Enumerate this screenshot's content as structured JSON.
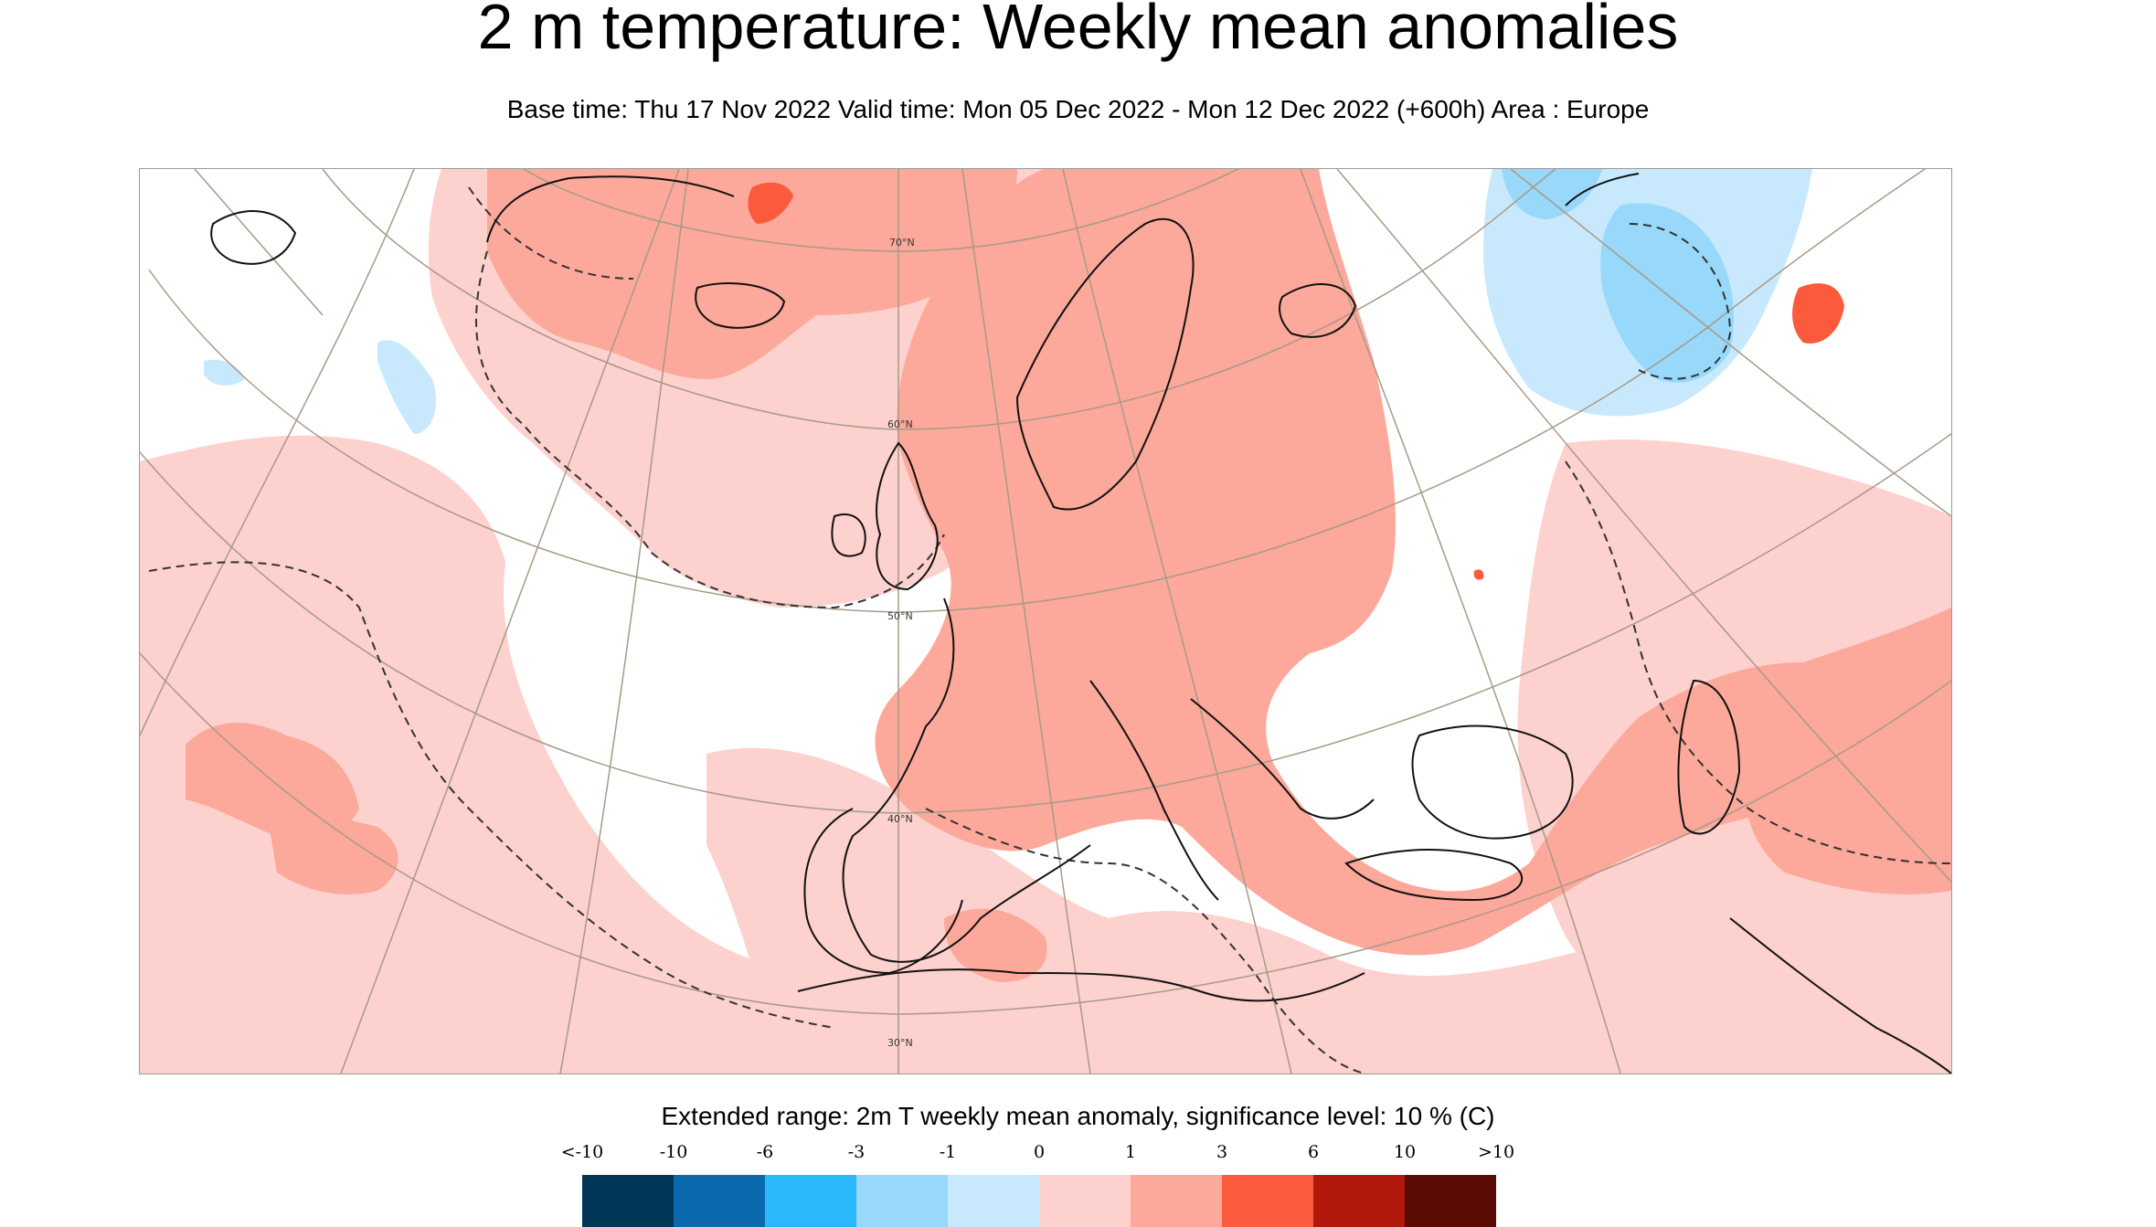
{
  "title": "2 m temperature: Weekly mean anomalies",
  "subtitle": "Base time: Thu 17 Nov 2022 Valid time: Mon 05 Dec 2022 - Mon 12 Dec 2022 (+600h) Area : Europe",
  "map": {
    "latitude_labels": [
      "70°N",
      "60°N",
      "50°N",
      "40°N",
      "30°N"
    ],
    "region": "Europe",
    "colors": {
      "weak_positive": "#fdd1cd",
      "moderate_positive": "#fca89b",
      "strong_positive": "#fb5a3c",
      "weak_negative": "#c8e9fd",
      "moderate_negative": "#97d8fb",
      "coast": "#111111",
      "graticule": "#a79a87"
    }
  },
  "legend": {
    "caption": "Extended range: 2m T weekly mean anomaly, significance level: 10 % (C)",
    "ticks": [
      "<-10",
      "-10",
      "-6",
      "-3",
      "-1",
      "0",
      "1",
      "3",
      "6",
      "10",
      ">10"
    ],
    "colors": [
      "#033758",
      "#0b6aad",
      "#2bb7fb",
      "#97d8fb",
      "#c8e9fd",
      "#fdd1cd",
      "#fca89b",
      "#fb5a3c",
      "#b2190d",
      "#5b0a04"
    ]
  }
}
